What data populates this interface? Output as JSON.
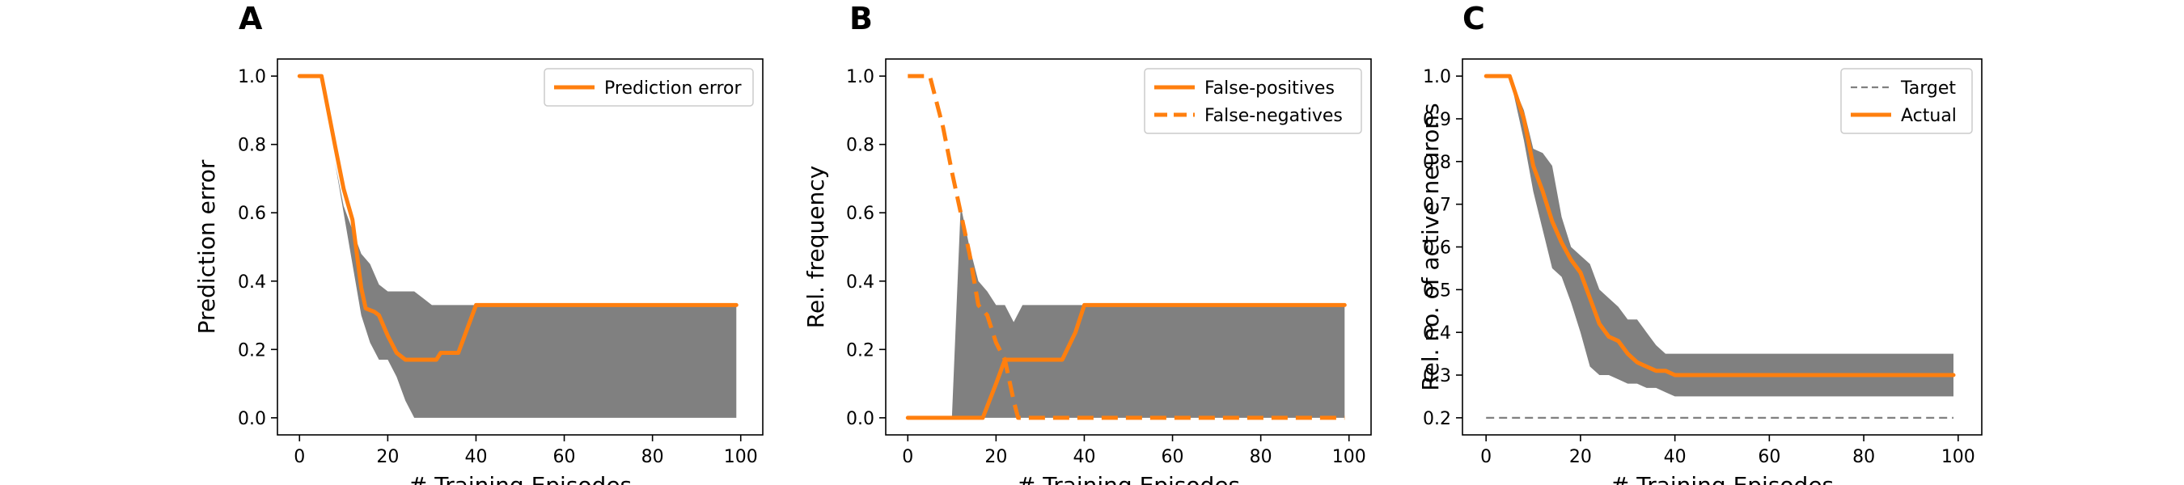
{
  "colors": {
    "accent": "#ff7f0e",
    "band": "#808080",
    "target": "#808080"
  },
  "chart_data": [
    {
      "type": "line",
      "panel_label": "A",
      "xlabel": "# Training Episodes",
      "ylabel": "Prediction error",
      "xlim": [
        -5,
        105
      ],
      "ylim": [
        -0.05,
        1.05
      ],
      "xticks": [
        0,
        20,
        40,
        60,
        80,
        100
      ],
      "yticks": [
        0.0,
        0.2,
        0.4,
        0.6,
        0.8,
        1.0
      ],
      "ytick_labels": [
        "0.0",
        "0.2",
        "0.4",
        "0.6",
        "0.8",
        "1.0"
      ],
      "legend": "top-right",
      "band": {
        "x": [
          0,
          5,
          8,
          10,
          12,
          14,
          16,
          18,
          20,
          22,
          24,
          26,
          28,
          30,
          32,
          34,
          36,
          38,
          40,
          60,
          80,
          99
        ],
        "lower": [
          1.0,
          1.0,
          0.75,
          0.6,
          0.45,
          0.3,
          0.22,
          0.17,
          0.17,
          0.12,
          0.05,
          0.0,
          0.0,
          0.0,
          0.0,
          0.0,
          0.0,
          0.0,
          0.0,
          0.0,
          0.0,
          0.0
        ],
        "upper": [
          1.0,
          1.0,
          0.75,
          0.62,
          0.55,
          0.48,
          0.45,
          0.39,
          0.37,
          0.37,
          0.37,
          0.37,
          0.35,
          0.33,
          0.33,
          0.33,
          0.33,
          0.33,
          0.33,
          0.33,
          0.33,
          0.33
        ]
      },
      "series": [
        {
          "name": "Prediction error",
          "style": "solid",
          "x": [
            0,
            5,
            8,
            10,
            12,
            14,
            15,
            17,
            18,
            20,
            22,
            24,
            28,
            31,
            32,
            36,
            38,
            40,
            60,
            80,
            99
          ],
          "y": [
            1.0,
            1.0,
            0.8,
            0.67,
            0.58,
            0.38,
            0.32,
            0.31,
            0.3,
            0.24,
            0.19,
            0.17,
            0.17,
            0.17,
            0.19,
            0.19,
            0.26,
            0.33,
            0.33,
            0.33,
            0.33
          ]
        }
      ]
    },
    {
      "type": "line",
      "panel_label": "B",
      "xlabel": "# Training Episodes",
      "ylabel": "Rel. frequency",
      "xlim": [
        -5,
        105
      ],
      "ylim": [
        -0.05,
        1.05
      ],
      "xticks": [
        0,
        20,
        40,
        60,
        80,
        100
      ],
      "yticks": [
        0.0,
        0.2,
        0.4,
        0.6,
        0.8,
        1.0
      ],
      "ytick_labels": [
        "0.0",
        "0.2",
        "0.4",
        "0.6",
        "0.8",
        "1.0"
      ],
      "legend": "top-right",
      "band": {
        "x": [
          0,
          5,
          8,
          10,
          12,
          14,
          16,
          18,
          20,
          22,
          24,
          26,
          28,
          30,
          40,
          60,
          80,
          99
        ],
        "lower": [
          0.0,
          0.0,
          0.0,
          0.0,
          0.0,
          0.0,
          0.0,
          0.0,
          0.0,
          0.0,
          0.0,
          0.0,
          0.0,
          0.0,
          0.0,
          0.0,
          0.0,
          0.0
        ],
        "upper": [
          0.0,
          0.0,
          0.0,
          0.0,
          0.62,
          0.5,
          0.4,
          0.37,
          0.33,
          0.33,
          0.28,
          0.33,
          0.33,
          0.33,
          0.33,
          0.33,
          0.33,
          0.33
        ]
      },
      "series": [
        {
          "name": "False-positives",
          "style": "solid",
          "x": [
            0,
            12,
            17,
            20,
            22,
            35,
            38,
            40,
            60,
            80,
            99
          ],
          "y": [
            0.0,
            0.0,
            0.0,
            0.1,
            0.17,
            0.17,
            0.25,
            0.33,
            0.33,
            0.33,
            0.33
          ]
        },
        {
          "name": "False-negatives",
          "style": "dashed",
          "x": [
            0,
            5,
            8,
            10,
            12,
            14,
            16,
            18,
            20,
            22,
            24,
            25,
            40,
            60,
            80,
            99
          ],
          "y": [
            1.0,
            1.0,
            0.85,
            0.72,
            0.6,
            0.48,
            0.33,
            0.3,
            0.22,
            0.17,
            0.05,
            0.0,
            0.0,
            0.0,
            0.0,
            0.0
          ]
        }
      ]
    },
    {
      "type": "line",
      "panel_label": "C",
      "xlabel": "# Training Episodes",
      "ylabel": "Rel. no. of active neurons",
      "xlim": [
        -5,
        105
      ],
      "ylim": [
        0.16,
        1.04
      ],
      "xticks": [
        0,
        20,
        40,
        60,
        80,
        100
      ],
      "yticks": [
        0.2,
        0.3,
        0.4,
        0.5,
        0.6,
        0.7,
        0.8,
        0.9,
        1.0
      ],
      "ytick_labels": [
        "0.2",
        "0.3",
        "0.4",
        "0.5",
        "0.6",
        "0.7",
        "0.8",
        "0.9",
        "1.0"
      ],
      "legend": "top-right",
      "band": {
        "x": [
          0,
          5,
          8,
          10,
          12,
          14,
          16,
          18,
          20,
          22,
          24,
          26,
          28,
          30,
          32,
          34,
          36,
          38,
          40,
          60,
          80,
          99
        ],
        "lower": [
          1.0,
          1.0,
          0.85,
          0.73,
          0.64,
          0.55,
          0.53,
          0.47,
          0.4,
          0.32,
          0.3,
          0.3,
          0.29,
          0.28,
          0.28,
          0.27,
          0.27,
          0.26,
          0.25,
          0.25,
          0.25,
          0.25
        ],
        "upper": [
          1.0,
          1.0,
          0.92,
          0.83,
          0.82,
          0.79,
          0.67,
          0.6,
          0.58,
          0.56,
          0.5,
          0.48,
          0.46,
          0.43,
          0.43,
          0.4,
          0.37,
          0.35,
          0.35,
          0.35,
          0.35,
          0.35
        ]
      },
      "series": [
        {
          "name": "Target",
          "style": "thin-dashed",
          "x": [
            0,
            99
          ],
          "y": [
            0.2,
            0.2
          ]
        },
        {
          "name": "Actual",
          "style": "solid",
          "x": [
            0,
            5,
            8,
            10,
            12,
            14,
            16,
            18,
            20,
            22,
            24,
            26,
            28,
            30,
            32,
            34,
            36,
            38,
            40,
            60,
            80,
            99
          ],
          "y": [
            1.0,
            1.0,
            0.9,
            0.79,
            0.73,
            0.66,
            0.61,
            0.57,
            0.54,
            0.48,
            0.42,
            0.39,
            0.38,
            0.35,
            0.33,
            0.32,
            0.31,
            0.31,
            0.3,
            0.3,
            0.3,
            0.3
          ]
        }
      ]
    }
  ]
}
